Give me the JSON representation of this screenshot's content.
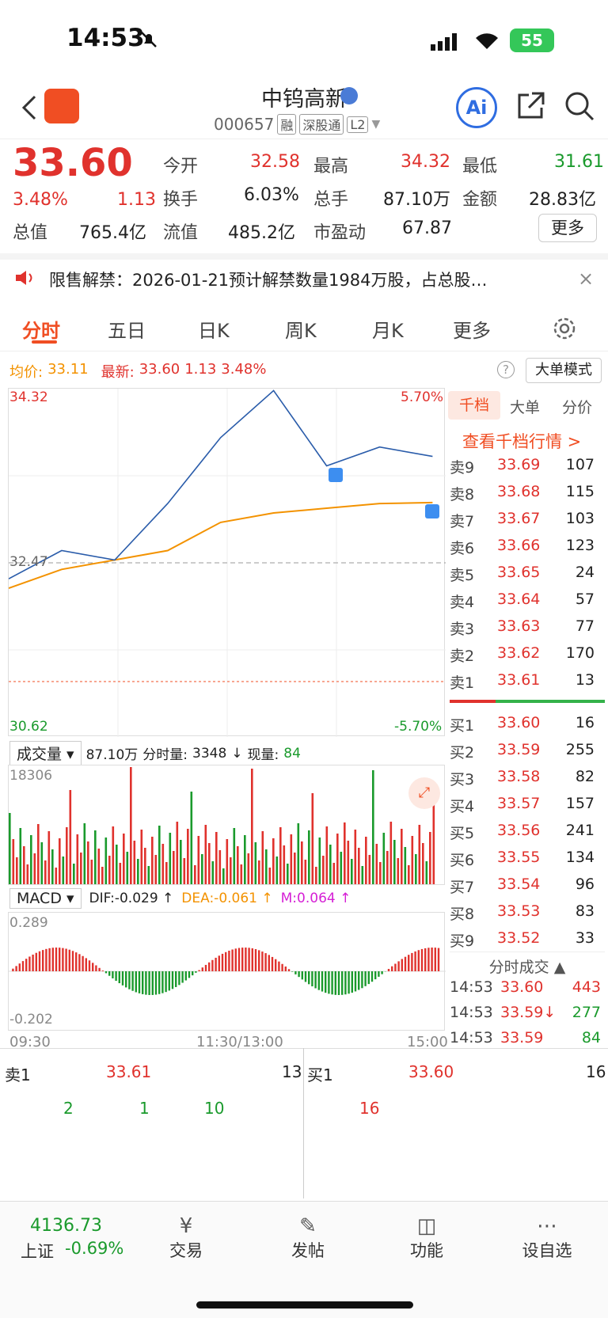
{
  "status_bar": {
    "time": "14:53",
    "battery": "55"
  },
  "header": {
    "title": "中钨高新",
    "code": "000657",
    "tags": [
      "融",
      "深股通",
      "L2"
    ],
    "ai_label": "Ai"
  },
  "quote": {
    "price": "33.60",
    "change_pct": "3.48%",
    "change": "1.13",
    "fields": [
      {
        "label": "今开",
        "value": "32.58",
        "color": "red"
      },
      {
        "label": "最高",
        "value": "34.32",
        "color": "red"
      },
      {
        "label": "最低",
        "value": "31.61",
        "color": "green"
      },
      {
        "label": "换手",
        "value": "6.03%",
        "color": "dark"
      },
      {
        "label": "总手",
        "value": "87.10万",
        "color": "dark"
      },
      {
        "label": "金额",
        "value": "28.83亿",
        "color": "dark"
      },
      {
        "label": "总值",
        "value": "765.4亿",
        "color": "dark"
      },
      {
        "label": "流值",
        "value": "485.2亿",
        "color": "dark"
      },
      {
        "label": "市盈动",
        "value": "67.87",
        "color": "dark"
      }
    ],
    "more_button": "更多"
  },
  "notice": {
    "text": "限售解禁：2026-01-21预计解禁数量1984万股，占总股…"
  },
  "tabs": [
    "分时",
    "五日",
    "日K",
    "周K",
    "月K",
    "更多"
  ],
  "active_tab": "分时",
  "chart_info": {
    "avg_label": "均价:",
    "avg_value": "33.11",
    "latest_label": "最新:",
    "latest_value": "33.60",
    "latest_change": "1.13",
    "latest_pct": "3.48%",
    "big_mode": "大单模式",
    "y_top": "34.32",
    "y_mid": "32.47",
    "y_bottom": "30.62",
    "pct_top": "5.70%",
    "pct_bottom": "-5.70%",
    "x_start": "09:30",
    "x_mid": "11:30/13:00",
    "x_end": "15:00"
  },
  "volume": {
    "selector": "成交量",
    "total": "87.10万",
    "minute_label": "分时量:",
    "minute_value": "3348",
    "now_label": "现量:",
    "now_value": "84",
    "max": "18306"
  },
  "macd": {
    "selector": "MACD",
    "dif": "DIF:-0.029 ↑",
    "dea": "DEA:-0.061 ↑",
    "m": "M:0.064 ↑",
    "top": "0.289",
    "bottom": "-0.202"
  },
  "order_tabs": [
    "千档",
    "大单",
    "分价"
  ],
  "order_link": "查看千档行情 >",
  "sells": [
    {
      "label": "卖9",
      "price": "33.69",
      "qty": "107"
    },
    {
      "label": "卖8",
      "price": "33.68",
      "qty": "115"
    },
    {
      "label": "卖7",
      "price": "33.67",
      "qty": "103"
    },
    {
      "label": "卖6",
      "price": "33.66",
      "qty": "123"
    },
    {
      "label": "卖5",
      "price": "33.65",
      "qty": "24"
    },
    {
      "label": "卖4",
      "price": "33.64",
      "qty": "57"
    },
    {
      "label": "卖3",
      "price": "33.63",
      "qty": "77"
    },
    {
      "label": "卖2",
      "price": "33.62",
      "qty": "170"
    },
    {
      "label": "卖1",
      "price": "33.61",
      "qty": "13"
    }
  ],
  "buys": [
    {
      "label": "买1",
      "price": "33.60",
      "qty": "16"
    },
    {
      "label": "买2",
      "price": "33.59",
      "qty": "255"
    },
    {
      "label": "买3",
      "price": "33.58",
      "qty": "82"
    },
    {
      "label": "买4",
      "price": "33.57",
      "qty": "157"
    },
    {
      "label": "买5",
      "price": "33.56",
      "qty": "241"
    },
    {
      "label": "买6",
      "price": "33.55",
      "qty": "134"
    },
    {
      "label": "买7",
      "price": "33.54",
      "qty": "96"
    },
    {
      "label": "买8",
      "price": "33.53",
      "qty": "83"
    },
    {
      "label": "买9",
      "price": "33.52",
      "qty": "33"
    }
  ],
  "trades_title": "分时成交",
  "trades": [
    {
      "time": "14:53",
      "price": "33.60",
      "qty": "443",
      "qty_color": "red"
    },
    {
      "time": "14:53",
      "price": "33.59↓",
      "qty": "277",
      "qty_color": "green"
    },
    {
      "time": "14:53",
      "price": "33.59",
      "qty": "84",
      "qty_color": "green"
    }
  ],
  "level1": {
    "sell_label": "卖1",
    "sell_price": "33.61",
    "sell_qty": "13",
    "buy_label": "买1",
    "buy_price": "33.60",
    "buy_qty": "16",
    "sell_queue": [
      "2",
      "1",
      "10"
    ],
    "buy_queue": [
      "16"
    ]
  },
  "bottom_nav": {
    "index_value": "4136.73",
    "index_name": "上证",
    "index_change": "-0.69%",
    "items": [
      "交易",
      "发帖",
      "功能",
      "设自选"
    ]
  },
  "chart_data": {
    "type": "line",
    "title": "",
    "xlabel": "",
    "ylabel": "",
    "ylim": [
      30.62,
      34.32
    ],
    "series": [],
    "x": [
      "09:30",
      "10:00",
      "10:30",
      "11:00",
      "11:30/13:00",
      "13:30",
      "14:00",
      "14:30",
      "14:53"
    ],
    "price": [
      32.3,
      32.6,
      32.5,
      33.1,
      33.8,
      34.3,
      33.5,
      33.7,
      33.6
    ],
    "avg": [
      32.2,
      32.4,
      32.5,
      32.6,
      32.9,
      33.0,
      33.05,
      33.1,
      33.11
    ]
  }
}
